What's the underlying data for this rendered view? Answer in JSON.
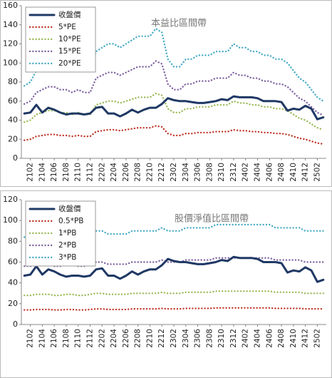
{
  "chart_data": [
    {
      "type": "line",
      "title": "本益比區間帶",
      "categories": [
        null,
        "2102",
        null,
        "2104",
        null,
        "2106",
        null,
        "2108",
        null,
        "2110",
        null,
        "2112",
        null,
        "2202",
        null,
        "2204",
        null,
        "2206",
        null,
        "2208",
        null,
        "2210",
        null,
        "2212",
        null,
        "2302",
        null,
        "2304",
        null,
        "2306",
        null,
        "2308",
        null,
        "2310",
        null,
        "2312",
        null,
        "2402",
        null,
        "2404",
        null,
        "2406",
        null,
        "2408",
        null,
        "2410",
        null,
        "2412",
        null,
        "2502",
        null
      ],
      "ylim": [
        0,
        160
      ],
      "yticks": [
        0,
        20,
        40,
        60,
        80,
        100,
        120,
        140,
        160
      ],
      "legend": "top-left",
      "series": [
        {
          "name": "收盤價",
          "color": "#1f3864",
          "style": "solid",
          "values": [
            47,
            48,
            56,
            48,
            53,
            51,
            48,
            46,
            47,
            47,
            46,
            47,
            53,
            54,
            47,
            47,
            44,
            47,
            51,
            48,
            51,
            53,
            53,
            57,
            63,
            61,
            60,
            60,
            59,
            58,
            58,
            59,
            60,
            62,
            61,
            65,
            64,
            64,
            64,
            63,
            60,
            60,
            60,
            59,
            50,
            52,
            51,
            55,
            52,
            41,
            43
          ]
        },
        {
          "name": "5*PE",
          "color": "#c0392b",
          "style": "dotted",
          "values": [
            19,
            20,
            23,
            24,
            25,
            25,
            24,
            24,
            23,
            24,
            23,
            23,
            28,
            29,
            30,
            30,
            29,
            30,
            31,
            32,
            32,
            32,
            34,
            33,
            26,
            24,
            24,
            26,
            26,
            27,
            27,
            27,
            28,
            28,
            28,
            30,
            29,
            29,
            28,
            28,
            27,
            27,
            26,
            26,
            25,
            23,
            21,
            20,
            18,
            16,
            15
          ]
        },
        {
          "name": "10*PE",
          "color": "#9bbb59",
          "style": "dotted",
          "values": [
            38,
            40,
            46,
            48,
            50,
            50,
            48,
            48,
            46,
            48,
            46,
            46,
            56,
            58,
            60,
            60,
            58,
            60,
            62,
            64,
            64,
            64,
            68,
            66,
            52,
            48,
            48,
            52,
            52,
            54,
            54,
            54,
            56,
            56,
            56,
            60,
            58,
            58,
            56,
            56,
            54,
            54,
            52,
            52,
            50,
            46,
            42,
            40,
            36,
            32,
            30
          ]
        },
        {
          "name": "15*PE",
          "color": "#8064a2",
          "style": "dotted",
          "values": [
            57,
            60,
            69,
            72,
            75,
            75,
            72,
            72,
            69,
            72,
            69,
            69,
            84,
            87,
            90,
            90,
            87,
            90,
            93,
            96,
            96,
            96,
            102,
            99,
            78,
            72,
            72,
            78,
            78,
            81,
            81,
            81,
            84,
            84,
            84,
            90,
            87,
            87,
            84,
            84,
            81,
            81,
            78,
            78,
            75,
            69,
            63,
            60,
            54,
            48,
            45
          ]
        },
        {
          "name": "20*PE",
          "color": "#4bacc6",
          "style": "dotted",
          "values": [
            76,
            80,
            92,
            96,
            100,
            100,
            96,
            96,
            92,
            96,
            92,
            92,
            112,
            116,
            120,
            120,
            116,
            120,
            124,
            128,
            128,
            128,
            136,
            132,
            104,
            96,
            96,
            104,
            104,
            108,
            108,
            108,
            112,
            112,
            112,
            120,
            116,
            116,
            112,
            112,
            108,
            108,
            104,
            104,
            100,
            92,
            84,
            80,
            72,
            64,
            60
          ]
        }
      ]
    },
    {
      "type": "line",
      "title": "股價淨值比區間帶",
      "categories": [
        null,
        "2102",
        null,
        "2104",
        null,
        "2106",
        null,
        "2108",
        null,
        "2110",
        null,
        "2112",
        null,
        "2202",
        null,
        "2204",
        null,
        "2206",
        null,
        "2208",
        null,
        "2210",
        null,
        "2212",
        null,
        "2302",
        null,
        "2304",
        null,
        "2306",
        null,
        "2308",
        null,
        "2310",
        null,
        "2312",
        null,
        "2402",
        null,
        "2404",
        null,
        "2406",
        null,
        "2408",
        null,
        "2410",
        null,
        "2412",
        null,
        "2502",
        null
      ],
      "ylim": [
        0,
        120
      ],
      "yticks": [
        0,
        20,
        40,
        60,
        80,
        100,
        120
      ],
      "legend": "top-left",
      "series": [
        {
          "name": "收盤價",
          "color": "#1f3864",
          "style": "solid",
          "values": [
            47,
            48,
            56,
            48,
            53,
            51,
            48,
            46,
            47,
            47,
            46,
            47,
            53,
            54,
            47,
            47,
            44,
            47,
            51,
            48,
            51,
            53,
            53,
            57,
            63,
            61,
            60,
            60,
            59,
            58,
            58,
            59,
            60,
            62,
            61,
            65,
            64,
            64,
            64,
            63,
            60,
            60,
            60,
            59,
            50,
            52,
            51,
            55,
            52,
            41,
            43
          ]
        },
        {
          "name": "0.5*PB",
          "color": "#c0392b",
          "style": "dotted",
          "values": [
            14,
            14,
            14.5,
            14.5,
            14.5,
            14,
            14,
            14.5,
            14.5,
            14,
            14,
            14.5,
            15,
            15,
            14.5,
            14.5,
            14.5,
            14.5,
            15,
            15,
            15,
            15,
            15,
            15.5,
            15,
            15,
            15,
            15.5,
            15.5,
            15.5,
            15.5,
            15.5,
            16,
            16,
            16,
            16,
            16,
            16,
            16,
            16,
            16,
            16,
            15.5,
            15.5,
            15.5,
            15.5,
            15.5,
            15,
            15,
            15,
            15
          ]
        },
        {
          "name": "1*PB",
          "color": "#9bbb59",
          "style": "dotted",
          "values": [
            28,
            28,
            29,
            29,
            29,
            28,
            28,
            29,
            29,
            28,
            28,
            29,
            30,
            30,
            29,
            29,
            29,
            29,
            30,
            30,
            30,
            30,
            30,
            31,
            30,
            30,
            30,
            31,
            31,
            31,
            31,
            31,
            32,
            32,
            32,
            32,
            32,
            32,
            32,
            32,
            32,
            32,
            31,
            31,
            31,
            31,
            31,
            30,
            30,
            30,
            30
          ]
        },
        {
          "name": "2*PB",
          "color": "#8064a2",
          "style": "dotted",
          "values": [
            56,
            56,
            58,
            58,
            58,
            56,
            56,
            58,
            58,
            56,
            56,
            58,
            60,
            60,
            58,
            58,
            58,
            58,
            60,
            60,
            60,
            60,
            60,
            62,
            60,
            60,
            60,
            62,
            62,
            62,
            62,
            62,
            64,
            64,
            64,
            64,
            64,
            64,
            64,
            64,
            64,
            64,
            62,
            62,
            62,
            62,
            62,
            60,
            60,
            60,
            60
          ]
        },
        {
          "name": "3*PB",
          "color": "#4bacc6",
          "style": "dotted",
          "values": [
            84,
            84,
            87,
            87,
            87,
            84,
            84,
            87,
            87,
            84,
            84,
            87,
            90,
            90,
            87,
            87,
            87,
            87,
            90,
            90,
            90,
            90,
            90,
            93,
            90,
            90,
            90,
            93,
            93,
            93,
            93,
            93,
            96,
            96,
            96,
            96,
            96,
            96,
            96,
            96,
            96,
            96,
            93,
            93,
            93,
            93,
            93,
            90,
            90,
            90,
            90
          ]
        }
      ]
    }
  ]
}
